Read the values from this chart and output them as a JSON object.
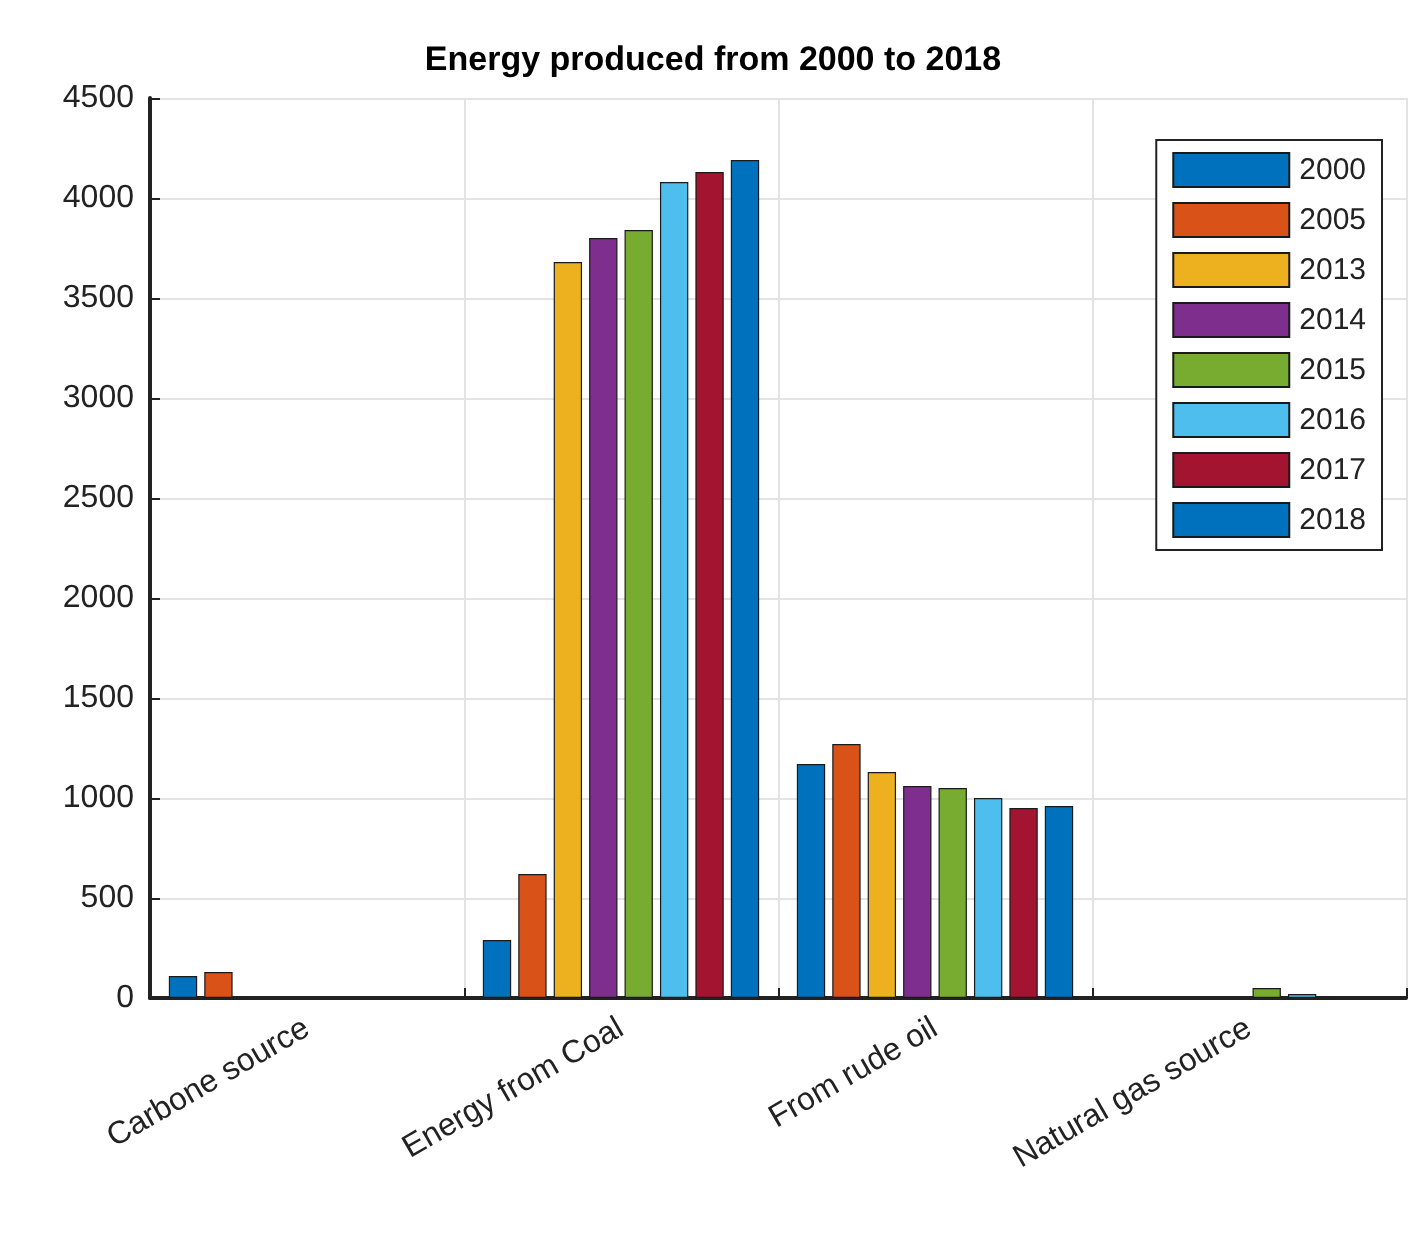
{
  "chart_data": {
    "type": "bar",
    "title": "Energy produced from 2000 to 2018",
    "categories": [
      "Carbone source",
      "Energy from Coal",
      "From rude oil",
      "Natural gas source"
    ],
    "series": [
      {
        "name": "2000",
        "color": "#0072bd",
        "values": [
          110,
          290,
          1170,
          null
        ]
      },
      {
        "name": "2005",
        "color": "#d95319",
        "values": [
          130,
          620,
          1270,
          null
        ]
      },
      {
        "name": "2013",
        "color": "#edb120",
        "values": [
          null,
          3680,
          1130,
          null
        ]
      },
      {
        "name": "2014",
        "color": "#7e2f8e",
        "values": [
          null,
          3800,
          1060,
          null
        ]
      },
      {
        "name": "2015",
        "color": "#77ac30",
        "values": [
          null,
          3840,
          1050,
          50
        ]
      },
      {
        "name": "2016",
        "color": "#4dbeee",
        "values": [
          null,
          4080,
          1000,
          20
        ]
      },
      {
        "name": "2017",
        "color": "#a2142f",
        "values": [
          null,
          4130,
          950,
          null
        ]
      },
      {
        "name": "2018",
        "color": "#0072bd",
        "values": [
          null,
          4190,
          960,
          null
        ]
      }
    ],
    "ylim": [
      0,
      4500
    ],
    "yticks": [
      0,
      500,
      1000,
      1500,
      2000,
      2500,
      3000,
      3500,
      4000,
      4500
    ],
    "grid": true,
    "legend": "top right"
  }
}
